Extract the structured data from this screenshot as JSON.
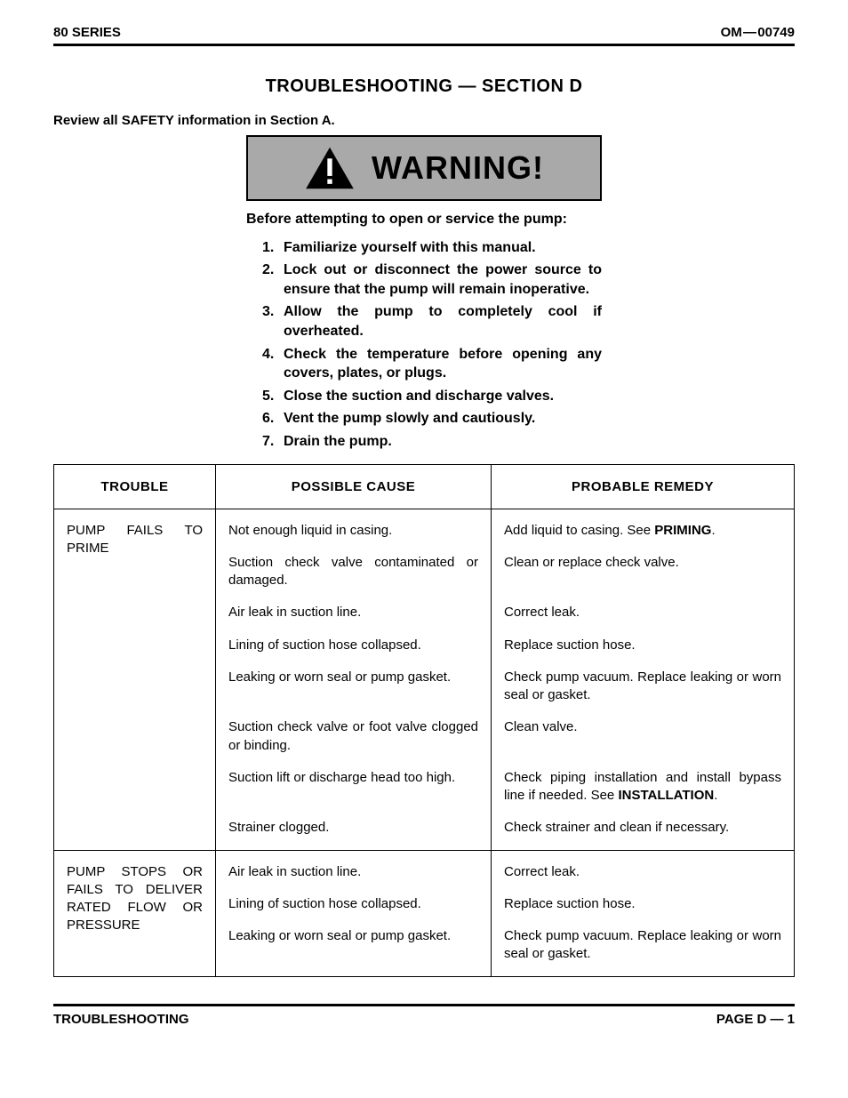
{
  "header": {
    "left": "80 SERIES",
    "right": "OM — 00749"
  },
  "title": "TROUBLESHOOTING — SECTION D",
  "review": "Review all SAFETY information in Section A.",
  "warning": {
    "label": "WARNING!",
    "triangle_fill": "#000000",
    "box_bg": "#a9a9a9",
    "intro": "Before attempting to open or service the pump:",
    "steps": [
      "Familiarize yourself with this manual.",
      "Lock out or disconnect the power source to ensure that the pump will remain inoperative.",
      "Allow the pump to completely cool if overheated.",
      "Check the temperature before opening any covers, plates, or plugs.",
      "Close the suction and discharge valves.",
      "Vent the pump slowly and cautiously.",
      "Drain the pump."
    ]
  },
  "table": {
    "headers": {
      "trouble": "TROUBLE",
      "cause": "POSSIBLE CAUSE",
      "remedy": "PROBABLE REMEDY"
    },
    "groups": [
      {
        "trouble": "PUMP FAILS TO PRIME",
        "rows": [
          {
            "cause": "Not enough liquid in casing.",
            "remedy_pre": "Add liquid to casing. See ",
            "remedy_bold": "PRIMING",
            "remedy_post": "."
          },
          {
            "cause": "Suction check valve contaminated or damaged.",
            "remedy": "Clean or replace check valve."
          },
          {
            "cause": "Air leak in suction line.",
            "remedy": "Correct leak."
          },
          {
            "cause": "Lining of suction hose collapsed.",
            "remedy": "Replace suction hose."
          },
          {
            "cause": "Leaking or worn seal or pump gasket.",
            "remedy": "Check pump vacuum. Replace leaking or worn seal or gasket."
          },
          {
            "cause": "Suction check valve or foot valve clogged or binding.",
            "remedy": "Clean valve."
          },
          {
            "cause": "Suction lift or discharge head too high.",
            "remedy_pre": "Check piping installation and install bypass line if needed. See ",
            "remedy_bold": "INSTALLATION",
            "remedy_post": "."
          },
          {
            "cause": "Strainer clogged.",
            "remedy": "Check strainer and clean if necessary."
          }
        ]
      },
      {
        "trouble": "PUMP STOPS OR FAILS TO DELIVER RATED FLOW OR PRESSURE",
        "rows": [
          {
            "cause": "Air leak in suction line.",
            "remedy": "Correct leak."
          },
          {
            "cause": "Lining of suction hose collapsed.",
            "remedy": "Replace suction hose."
          },
          {
            "cause": "Leaking or worn seal or pump gasket.",
            "remedy": "Check pump vacuum. Replace leaking or worn seal or gasket."
          }
        ]
      }
    ]
  },
  "footer": {
    "left": "TROUBLESHOOTING",
    "right": "PAGE D — 1"
  },
  "colors": {
    "text": "#000000",
    "bg": "#ffffff",
    "rule": "#000000"
  }
}
